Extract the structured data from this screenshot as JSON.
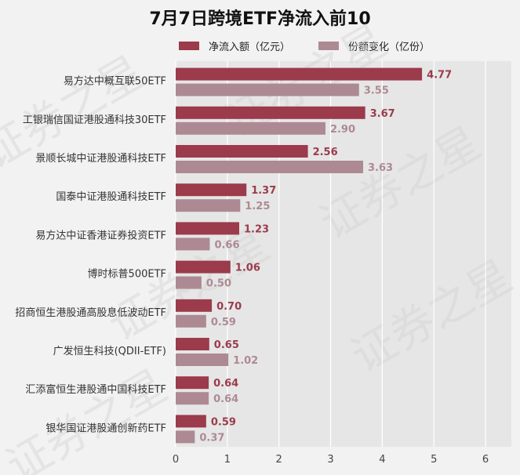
{
  "chart_data": {
    "type": "bar",
    "orientation": "horizontal",
    "title": "7月7日跨境ETF净流入前10",
    "categories": [
      "易方达中概互联50ETF",
      "工银瑞信国证港股通科技30ETF",
      "景顺长城中证港股通科技ETF",
      "国泰中证港股通科技ETF",
      "易方达中证香港证券投资ETF",
      "博时标普500ETF",
      "招商恒生港股通高股息低波动ETF",
      "广发恒生科技(QDII-ETF)",
      "汇添富恒生港股通中国科技ETF",
      "银华国证港股通创新药ETF"
    ],
    "series": [
      {
        "name": "净流入额（亿元）",
        "color": "#9b3b4b",
        "values": [
          4.77,
          3.67,
          2.56,
          1.37,
          1.23,
          1.06,
          0.7,
          0.65,
          0.64,
          0.59
        ],
        "labels": [
          "4.77",
          "3.67",
          "2.56",
          "1.37",
          "1.23",
          "1.06",
          "0.70",
          "0.65",
          "0.64",
          "0.59"
        ]
      },
      {
        "name": "份额变化（亿份）",
        "color": "#ad8a93",
        "values": [
          3.55,
          2.9,
          3.63,
          1.25,
          0.66,
          0.5,
          0.59,
          1.02,
          0.64,
          0.37
        ],
        "labels": [
          "3.55",
          "2.90",
          "3.63",
          "1.25",
          "0.66",
          "0.50",
          "0.59",
          "1.02",
          "0.64",
          "0.37"
        ]
      }
    ],
    "x_ticks": [
      "0",
      "1",
      "2",
      "3",
      "4",
      "5",
      "6"
    ],
    "xlim": [
      0,
      6.5
    ],
    "grid": true,
    "legend_position": "top",
    "watermark": "证券之星"
  }
}
